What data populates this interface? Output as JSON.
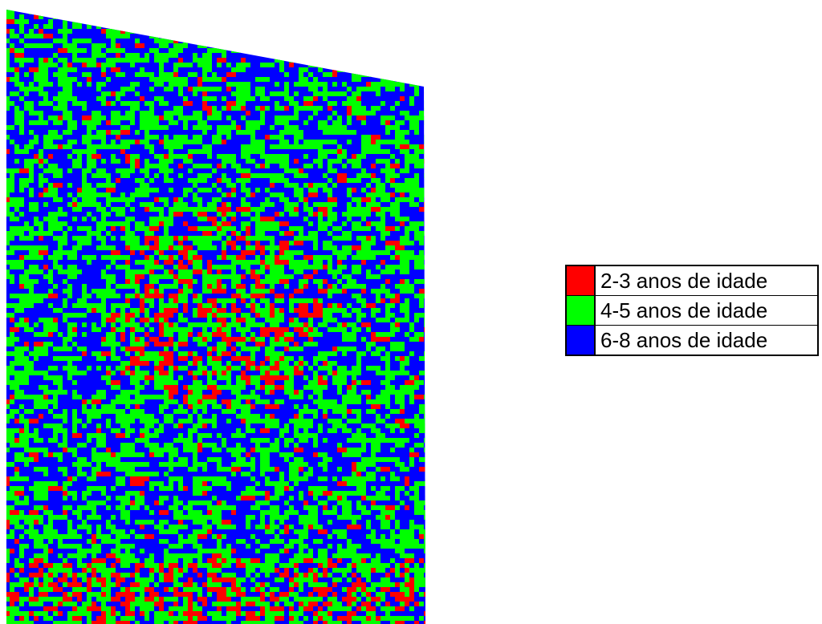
{
  "map": {
    "class_colors": [
      "#ff0000",
      "#00ff00",
      "#0000ff"
    ],
    "background_color": "#0000ff"
  },
  "legend": {
    "items": [
      {
        "label": "2-3 anos de idade",
        "color": "#ff0000"
      },
      {
        "label": "4-5 anos de idade",
        "color": "#00ff00"
      },
      {
        "label": "6-8 anos de idade",
        "color": "#0000ff"
      }
    ]
  }
}
